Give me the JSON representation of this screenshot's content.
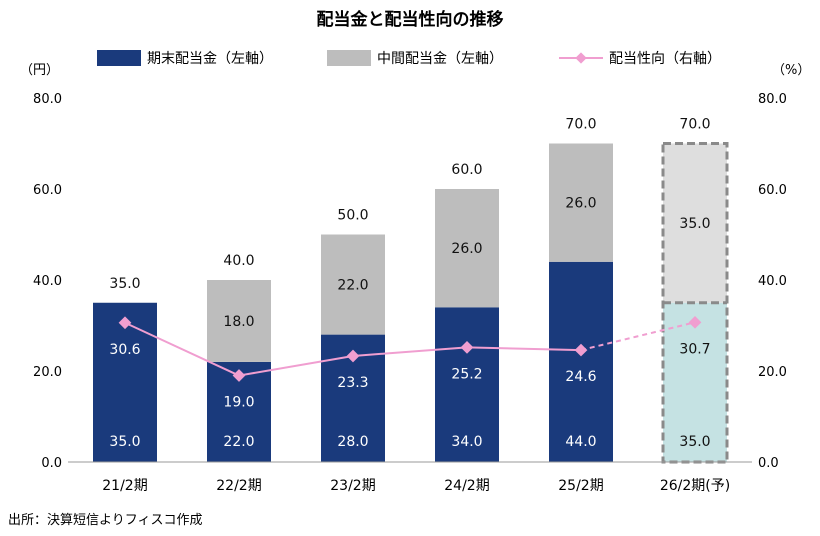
{
  "chart_data": {
    "type": "bar",
    "title": "配当金と配当性向の推移",
    "left_axis_unit": "（円）",
    "right_axis_unit": "（%）",
    "ylim": [
      0,
      80
    ],
    "y_ticks": [
      "0.0",
      "20.0",
      "40.0",
      "60.0",
      "80.0"
    ],
    "y2lim": [
      0,
      80
    ],
    "y2_ticks": [
      "0.0",
      "20.0",
      "40.0",
      "60.0",
      "80.0"
    ],
    "categories": [
      "21/2期",
      "22/2期",
      "23/2期",
      "24/2期",
      "25/2期",
      "26/2期(予)"
    ],
    "forecast_index": 5,
    "series": [
      {
        "name": "期末配当金（左軸）",
        "axis": "left",
        "kind": "bar",
        "color": "#1a3a7c",
        "forecast_color": "#c5e2e3",
        "values": [
          35.0,
          22.0,
          28.0,
          34.0,
          44.0,
          35.0
        ],
        "labels": [
          "35.0",
          "22.0",
          "28.0",
          "34.0",
          "44.0",
          "35.0"
        ]
      },
      {
        "name": "中間配当金（左軸）",
        "axis": "left",
        "kind": "bar",
        "color": "#bdbdbd",
        "forecast_color": "#dedede",
        "values": [
          0,
          18.0,
          22.0,
          26.0,
          26.0,
          35.0
        ],
        "labels": [
          "",
          "18.0",
          "22.0",
          "26.0",
          "26.0",
          "35.0"
        ]
      },
      {
        "name": "配当性向（右軸）",
        "axis": "right",
        "kind": "line",
        "color": "#f09ed0",
        "values": [
          30.6,
          19.0,
          23.3,
          25.2,
          24.6,
          30.7
        ],
        "labels": [
          "30.6",
          "19.0",
          "23.3",
          "25.2",
          "24.6",
          "30.7"
        ]
      }
    ],
    "totals": [
      "35.0",
      "40.0",
      "50.0",
      "60.0",
      "70.0",
      "70.0"
    ],
    "legend_position": "top",
    "grid": false
  },
  "source": "出所：決算短信よりフィスコ作成"
}
